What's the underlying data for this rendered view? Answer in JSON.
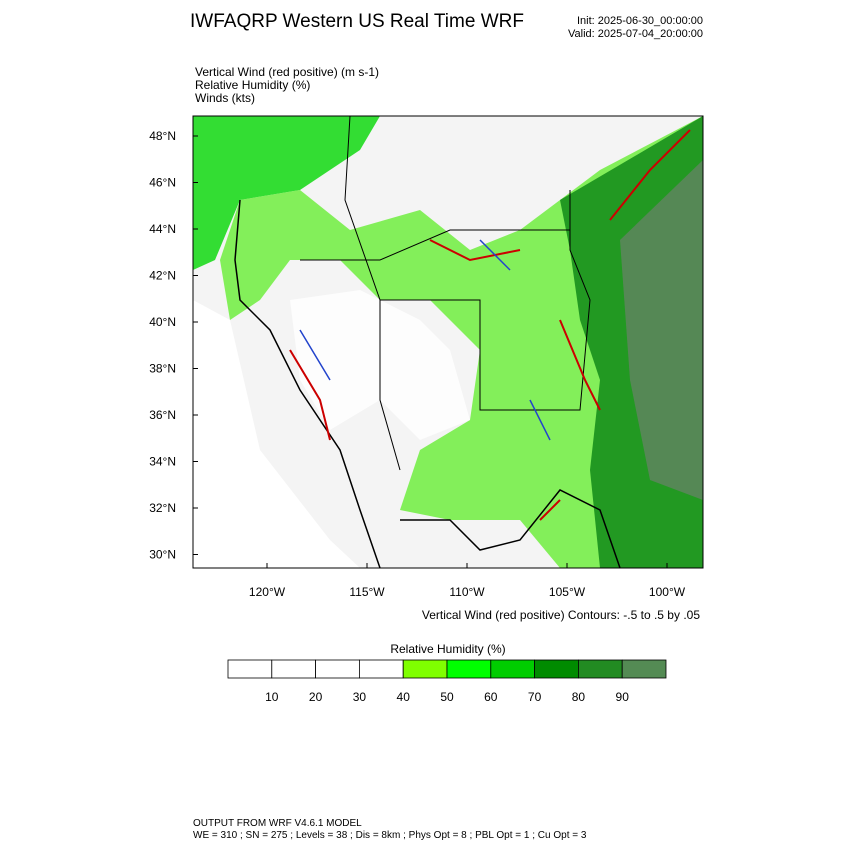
{
  "header": {
    "title": "IWFAQRP Western US Real Time WRF",
    "init": "Init: 2025-06-30_00:00:00",
    "valid": "Valid: 2025-07-04_20:00:00"
  },
  "fields": [
    "Vertical Wind (red positive)   (m s-1)",
    "Relative Humidity   (%)",
    "Winds   (kts)"
  ],
  "map": {
    "lat_ticks": [
      "48°N",
      "46°N",
      "44°N",
      "42°N",
      "40°N",
      "38°N",
      "36°N",
      "34°N",
      "32°N",
      "30°N"
    ],
    "lon_ticks": [
      "120°W",
      "115°W",
      "110°W",
      "105°W",
      "100°W"
    ],
    "contour_note": "Vertical Wind (red positive) Contours: -.5 to .5 by .05"
  },
  "colorbar": {
    "title": "Relative Humidity   (%)",
    "colors": [
      "#ffffff",
      "#ffffff",
      "#ffffff",
      "#ffffff",
      "#7fff00",
      "#00ff00",
      "#00cd00",
      "#008b00",
      "#228b22",
      "#548b54"
    ],
    "labels": [
      10,
      20,
      30,
      40,
      50,
      60,
      70,
      80,
      90
    ]
  },
  "footer": {
    "line1": "OUTPUT FROM WRF V4.6.1 MODEL",
    "line2": "WE = 310 ; SN = 275 ; Levels = 38 ; Dis = 8km ; Phys Opt = 8 ; PBL Opt = 1 ; Cu Opt = 3"
  }
}
